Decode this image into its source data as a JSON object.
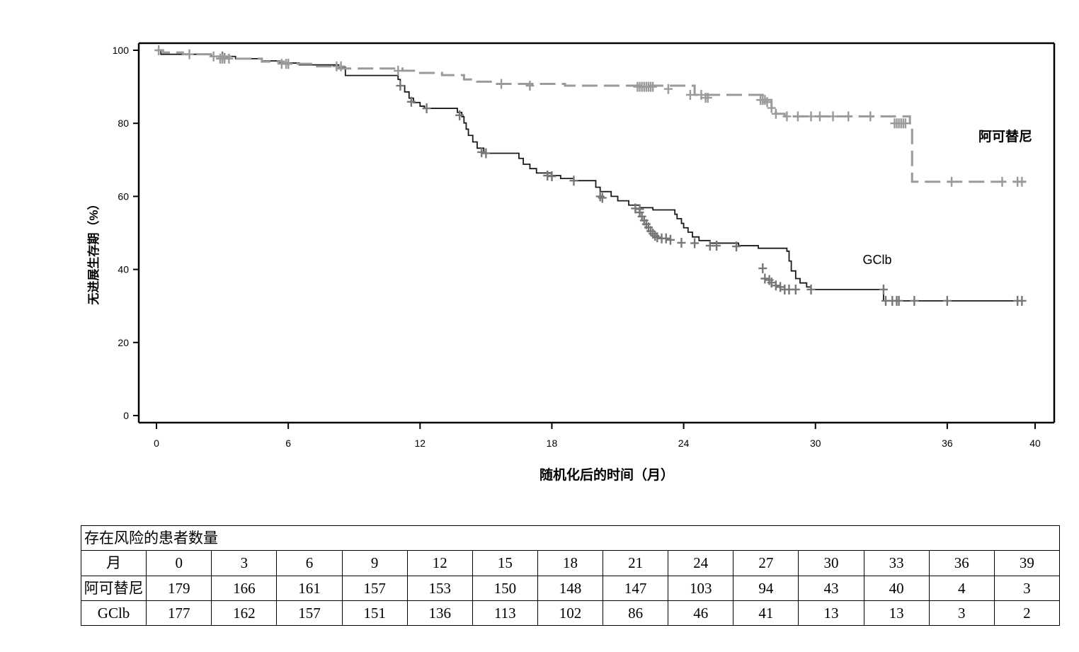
{
  "chart_data": {
    "type": "line",
    "title": "",
    "xlabel": "随机化后的时间（月）",
    "ylabel": "无进展生存期（%）",
    "xlim": [
      0,
      40
    ],
    "ylim": [
      0,
      100
    ],
    "xticks": [
      0,
      6,
      12,
      18,
      24,
      30,
      36,
      40
    ],
    "yticks": [
      0,
      20,
      40,
      60,
      80,
      100
    ],
    "grid": false,
    "series": [
      {
        "name": "阿可替尼",
        "color": "#9a9a9a",
        "style": "dashed",
        "steps": [
          [
            0,
            100
          ],
          [
            0.3,
            99.4
          ],
          [
            1.2,
            98.9
          ],
          [
            2.6,
            98.3
          ],
          [
            3.6,
            97.7
          ],
          [
            4.8,
            96.9
          ],
          [
            5.8,
            96.3
          ],
          [
            7.2,
            95.6
          ],
          [
            8.2,
            95.0
          ],
          [
            11.2,
            94.4
          ],
          [
            12.0,
            93.8
          ],
          [
            13.0,
            93.2
          ],
          [
            14.0,
            92.0
          ],
          [
            14.6,
            91.4
          ],
          [
            15.5,
            90.8
          ],
          [
            18.6,
            90.3
          ],
          [
            24.5,
            87.8
          ],
          [
            27.6,
            86.4
          ],
          [
            28.0,
            84.2
          ],
          [
            28.2,
            82.6
          ],
          [
            28.6,
            81.9
          ],
          [
            34.3,
            80.0
          ],
          [
            34.4,
            64.0
          ],
          [
            39.6,
            64.0
          ]
        ],
        "censors": [
          [
            0.1,
            100
          ],
          [
            1.5,
            98.9
          ],
          [
            2.6,
            98.3
          ],
          [
            2.9,
            97.7
          ],
          [
            3.0,
            97.7
          ],
          [
            3.1,
            97.7
          ],
          [
            3.3,
            97.7
          ],
          [
            5.7,
            96.3
          ],
          [
            5.9,
            96.3
          ],
          [
            6.0,
            96.3
          ],
          [
            8.2,
            95.6
          ],
          [
            8.4,
            95.6
          ],
          [
            11.0,
            94.4
          ],
          [
            15.7,
            90.8
          ],
          [
            17.0,
            90.3
          ],
          [
            21.9,
            90.0
          ],
          [
            22.0,
            90.0
          ],
          [
            22.1,
            90.0
          ],
          [
            22.2,
            90.0
          ],
          [
            22.3,
            90.0
          ],
          [
            22.4,
            90.0
          ],
          [
            22.5,
            90.0
          ],
          [
            22.6,
            90.0
          ],
          [
            23.3,
            89.4
          ],
          [
            24.3,
            87.8
          ],
          [
            24.8,
            87.8
          ],
          [
            25.0,
            87.0
          ],
          [
            25.1,
            87.0
          ],
          [
            27.5,
            86.4
          ],
          [
            27.6,
            86.4
          ],
          [
            27.7,
            86.4
          ],
          [
            27.8,
            85.8
          ],
          [
            28.0,
            84.2
          ],
          [
            28.2,
            82.6
          ],
          [
            28.7,
            81.9
          ],
          [
            29.2,
            81.9
          ],
          [
            29.8,
            81.9
          ],
          [
            30.2,
            81.9
          ],
          [
            30.8,
            81.9
          ],
          [
            31.5,
            81.9
          ],
          [
            32.5,
            81.9
          ],
          [
            33.6,
            80.0
          ],
          [
            33.7,
            80.0
          ],
          [
            33.8,
            80.0
          ],
          [
            33.9,
            80.0
          ],
          [
            34.0,
            80.0
          ],
          [
            34.1,
            80.0
          ],
          [
            36.2,
            64.0
          ],
          [
            38.5,
            64.0
          ],
          [
            39.2,
            64.0
          ],
          [
            39.4,
            64.0
          ]
        ]
      },
      {
        "name": "GClb",
        "color": "#1a1a1a",
        "style": "solid",
        "steps": [
          [
            0,
            100
          ],
          [
            0.2,
            98.9
          ],
          [
            2.5,
            98.3
          ],
          [
            3.6,
            97.7
          ],
          [
            4.8,
            97.1
          ],
          [
            5.6,
            96.5
          ],
          [
            6.5,
            96.0
          ],
          [
            8.3,
            95.4
          ],
          [
            8.6,
            93.1
          ],
          [
            11.0,
            92.0
          ],
          [
            11.1,
            90.3
          ],
          [
            11.3,
            88.6
          ],
          [
            11.5,
            86.9
          ],
          [
            11.7,
            85.7
          ],
          [
            12.0,
            84.7
          ],
          [
            12.2,
            84.1
          ],
          [
            13.7,
            83.0
          ],
          [
            13.9,
            81.8
          ],
          [
            14.0,
            80.1
          ],
          [
            14.1,
            78.4
          ],
          [
            14.2,
            76.7
          ],
          [
            14.4,
            74.9
          ],
          [
            14.6,
            73.2
          ],
          [
            14.9,
            71.8
          ],
          [
            16.5,
            70.4
          ],
          [
            16.7,
            68.8
          ],
          [
            17.0,
            67.6
          ],
          [
            17.3,
            66.4
          ],
          [
            18.0,
            65.7
          ],
          [
            18.4,
            64.9
          ],
          [
            19.0,
            64.3
          ],
          [
            20.0,
            62.5
          ],
          [
            20.2,
            61.3
          ],
          [
            20.7,
            60.0
          ],
          [
            21.0,
            58.8
          ],
          [
            21.5,
            57.6
          ],
          [
            22.0,
            56.9
          ],
          [
            22.6,
            56.3
          ],
          [
            23.6,
            55.1
          ],
          [
            23.7,
            53.9
          ],
          [
            23.9,
            52.6
          ],
          [
            24.0,
            51.4
          ],
          [
            24.2,
            50.2
          ],
          [
            24.4,
            48.9
          ],
          [
            24.7,
            47.9
          ],
          [
            25.2,
            47.2
          ],
          [
            26.5,
            46.5
          ],
          [
            27.4,
            45.8
          ],
          [
            28.7,
            45.0
          ],
          [
            28.8,
            42.3
          ],
          [
            28.9,
            39.6
          ],
          [
            29.1,
            37.5
          ],
          [
            29.3,
            36.3
          ],
          [
            29.6,
            35.2
          ],
          [
            29.8,
            34.5
          ],
          [
            32.8,
            34.5
          ],
          [
            33.1,
            31.4
          ],
          [
            39.6,
            31.4
          ]
        ],
        "censors": [
          [
            3.0,
            98.3
          ],
          [
            3.1,
            97.9
          ],
          [
            6.0,
            96.3
          ],
          [
            11.1,
            90.3
          ],
          [
            11.6,
            85.9
          ],
          [
            12.3,
            84.1
          ],
          [
            13.8,
            82.2
          ],
          [
            14.8,
            72.1
          ],
          [
            15.0,
            71.8
          ],
          [
            17.8,
            65.7
          ],
          [
            18.0,
            65.5
          ],
          [
            19.0,
            64.3
          ],
          [
            20.2,
            60.0
          ],
          [
            20.3,
            59.6
          ],
          [
            21.8,
            56.7
          ],
          [
            22.0,
            56.5
          ],
          [
            22.0,
            55.6
          ],
          [
            22.1,
            54.5
          ],
          [
            22.2,
            53.4
          ],
          [
            22.3,
            52.4
          ],
          [
            22.4,
            51.5
          ],
          [
            22.5,
            50.5
          ],
          [
            22.6,
            49.8
          ],
          [
            22.7,
            49.2
          ],
          [
            22.8,
            48.8
          ],
          [
            23.0,
            48.5
          ],
          [
            23.2,
            48.5
          ],
          [
            23.4,
            48.1
          ],
          [
            23.9,
            47.3
          ],
          [
            24.5,
            47.2
          ],
          [
            25.2,
            46.5
          ],
          [
            25.5,
            46.5
          ],
          [
            26.4,
            46.3
          ],
          [
            27.6,
            40.3
          ],
          [
            27.7,
            37.5
          ],
          [
            27.9,
            37.1
          ],
          [
            28.0,
            36.4
          ],
          [
            28.2,
            35.6
          ],
          [
            28.4,
            35.2
          ],
          [
            28.6,
            34.5
          ],
          [
            28.8,
            34.5
          ],
          [
            29.1,
            34.5
          ],
          [
            29.8,
            34.5
          ],
          [
            33.1,
            34.5
          ],
          [
            33.2,
            31.4
          ],
          [
            33.5,
            31.4
          ],
          [
            33.7,
            31.4
          ],
          [
            33.8,
            31.4
          ],
          [
            34.5,
            31.4
          ],
          [
            36.0,
            31.4
          ],
          [
            39.2,
            31.4
          ],
          [
            39.4,
            31.4
          ]
        ]
      }
    ],
    "annotations": [
      {
        "text": "阿可替尼",
        "x": 37.5,
        "y": 80
      },
      {
        "text": "GClb",
        "x": 32.2,
        "y": 43
      }
    ]
  },
  "risk_table": {
    "title": "存在风险的患者数量",
    "header_label": "月",
    "months": [
      "0",
      "3",
      "6",
      "9",
      "12",
      "15",
      "18",
      "21",
      "24",
      "27",
      "30",
      "33",
      "36",
      "39"
    ],
    "rows": [
      {
        "label": "阿可替尼",
        "values": [
          "179",
          "166",
          "161",
          "157",
          "153",
          "150",
          "148",
          "147",
          "103",
          "94",
          "43",
          "40",
          "4",
          "3"
        ]
      },
      {
        "label": "GClb",
        "values": [
          "177",
          "162",
          "157",
          "151",
          "136",
          "113",
          "102",
          "86",
          "46",
          "41",
          "13",
          "13",
          "3",
          "2"
        ]
      }
    ]
  }
}
